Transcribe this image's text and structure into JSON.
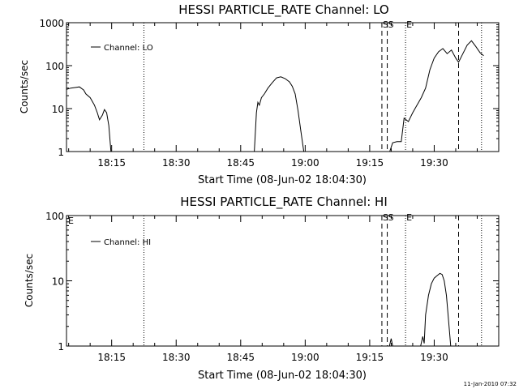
{
  "footer_timestamp": "11-Jan-2010 07:32",
  "chart_data": [
    {
      "type": "line",
      "title": "HESSI PARTICLE_RATE Channel: LO",
      "xlabel": "Start Time (08-Jun-02 18:04:30)",
      "ylabel": "Counts/sec",
      "yscale": "log",
      "xlim": [
        "18:04:30",
        "19:45:00"
      ],
      "ylim": [
        1,
        1000
      ],
      "x_ticks": [
        "18:15",
        "18:30",
        "18:45",
        "19:00",
        "19:15",
        "19:30"
      ],
      "y_ticks": [
        {
          "value": 1,
          "label": "1"
        },
        {
          "value": 10,
          "label": "10"
        },
        {
          "value": 100,
          "label": "100"
        },
        {
          "value": 1000,
          "label": "1000"
        }
      ],
      "legend": {
        "entry": "Channel: LO",
        "position": "top-left"
      },
      "flags": [
        {
          "time": "18:22:30",
          "style": "dotted",
          "label": ""
        },
        {
          "time": "19:17:50",
          "style": "dashed",
          "label": "S"
        },
        {
          "time": "19:19:05",
          "style": "dashed",
          "label": "S"
        },
        {
          "time": "19:23:20",
          "style": "dotted",
          "label": "E"
        },
        {
          "time": "19:35:40",
          "style": "dashed",
          "label": ""
        },
        {
          "time": "19:41:00",
          "style": "dotted",
          "label": ""
        }
      ],
      "series": [
        {
          "segments": [
            [
              [
                "18:04:30",
                28
              ],
              [
                "18:05:30",
                30
              ],
              [
                "18:06:30",
                31
              ],
              [
                "18:07:30",
                32
              ],
              [
                "18:08:30",
                27
              ],
              [
                "18:09:00",
                22
              ],
              [
                "18:10:00",
                18
              ],
              [
                "18:11:00",
                12
              ],
              [
                "18:11:40",
                8
              ],
              [
                "18:12:10",
                5.5
              ],
              [
                "18:12:50",
                7
              ],
              [
                "18:13:20",
                9.5
              ],
              [
                "18:13:50",
                8
              ],
              [
                "18:14:20",
                4
              ],
              [
                "18:14:50",
                1
              ]
            ],
            [
              [
                "18:48:10",
                1
              ],
              [
                "18:48:40",
                8
              ],
              [
                "18:49:00",
                14
              ],
              [
                "18:49:20",
                12
              ],
              [
                "18:49:50",
                18
              ],
              [
                "18:50:30",
                22
              ],
              [
                "18:51:20",
                30
              ],
              [
                "18:52:20",
                40
              ],
              [
                "18:53:20",
                52
              ],
              [
                "18:54:20",
                55
              ],
              [
                "18:55:20",
                50
              ],
              [
                "18:56:20",
                42
              ],
              [
                "18:57:00",
                33
              ],
              [
                "18:57:40",
                22
              ],
              [
                "18:58:20",
                9
              ],
              [
                "18:59:00",
                3
              ],
              [
                "18:59:40",
                1
              ]
            ],
            [
              [
                "19:19:40",
                1
              ],
              [
                "19:20:20",
                1.6
              ],
              [
                "19:21:20",
                1.7
              ],
              [
                "19:22:20",
                1.7
              ],
              [
                "19:23:00",
                6
              ],
              [
                "19:24:00",
                5
              ],
              [
                "19:25:00",
                8
              ],
              [
                "19:26:00",
                12
              ],
              [
                "19:27:00",
                18
              ],
              [
                "19:28:00",
                30
              ],
              [
                "19:29:00",
                80
              ],
              [
                "19:30:00",
                150
              ],
              [
                "19:31:00",
                210
              ],
              [
                "19:32:00",
                250
              ],
              [
                "19:33:00",
                190
              ],
              [
                "19:34:00",
                230
              ],
              [
                "19:35:00",
                150
              ],
              [
                "19:35:40",
                120
              ],
              [
                "19:36:40",
                190
              ],
              [
                "19:37:40",
                300
              ],
              [
                "19:38:40",
                380
              ],
              [
                "19:39:40",
                280
              ],
              [
                "19:40:40",
                200
              ],
              [
                "19:41:30",
                170
              ]
            ]
          ]
        }
      ]
    },
    {
      "type": "line",
      "title": "HESSI PARTICLE_RATE Channel: HI",
      "xlabel": "Start Time (08-Jun-02 18:04:30)",
      "ylabel": "Counts/sec",
      "yscale": "log",
      "xlim": [
        "18:04:30",
        "19:45:00"
      ],
      "ylim": [
        1,
        100
      ],
      "x_ticks": [
        "18:15",
        "18:30",
        "18:45",
        "19:00",
        "19:15",
        "19:30"
      ],
      "y_ticks": [
        {
          "value": 1,
          "label": "1"
        },
        {
          "value": 10,
          "label": "10"
        },
        {
          "value": 100,
          "label": "100"
        }
      ],
      "legend": {
        "entry": "Channel: HI",
        "position": "top-left"
      },
      "top_left_mark": "E",
      "flags": [
        {
          "time": "18:22:30",
          "style": "dotted",
          "label": ""
        },
        {
          "time": "19:17:50",
          "style": "dashed",
          "label": "S"
        },
        {
          "time": "19:19:05",
          "style": "dashed",
          "label": "S"
        },
        {
          "time": "19:23:20",
          "style": "dotted",
          "label": "E"
        },
        {
          "time": "19:35:40",
          "style": "dashed",
          "label": ""
        },
        {
          "time": "19:41:00",
          "style": "dotted",
          "label": ""
        }
      ],
      "series": [
        {
          "segments": [
            [
              [
                "19:19:35",
                1
              ],
              [
                "19:20:00",
                1.3
              ],
              [
                "19:20:20",
                1
              ]
            ],
            [
              [
                "19:26:50",
                1
              ],
              [
                "19:27:20",
                1.4
              ],
              [
                "19:27:40",
                1.1
              ],
              [
                "19:28:00",
                3
              ],
              [
                "19:28:40",
                6
              ],
              [
                "19:29:20",
                9
              ],
              [
                "19:30:00",
                11
              ],
              [
                "19:30:40",
                12
              ],
              [
                "19:31:20",
                13
              ],
              [
                "19:31:50",
                12.5
              ],
              [
                "19:32:20",
                10
              ],
              [
                "19:32:50",
                6
              ],
              [
                "19:33:20",
                2.5
              ],
              [
                "19:33:50",
                1
              ]
            ]
          ]
        }
      ]
    }
  ]
}
